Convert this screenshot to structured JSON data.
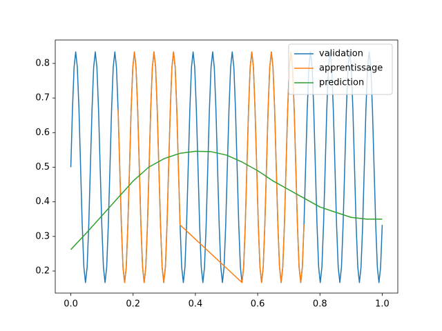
{
  "chart_data": {
    "type": "line",
    "xlim": [
      -0.05,
      1.05
    ],
    "xticks": [
      {
        "value": 0,
        "label": "0.0"
      },
      {
        "value": 0.2,
        "label": "0.2"
      },
      {
        "value": 0.4,
        "label": "0.4"
      },
      {
        "value": 0.6,
        "label": "0.6"
      },
      {
        "value": 0.8,
        "label": "0.8"
      },
      {
        "value": 1,
        "label": "1.0"
      }
    ],
    "ylim": [
      0.1363,
      0.8677
    ],
    "yticks": [
      {
        "value": 0.2,
        "label": "0.2"
      },
      {
        "value": 0.3,
        "label": "0.3"
      },
      {
        "value": 0.4,
        "label": "0.4"
      },
      {
        "value": 0.5,
        "label": "0.5"
      },
      {
        "value": 0.6,
        "label": "0.6"
      },
      {
        "value": 0.7,
        "label": "0.7"
      },
      {
        "value": 0.8,
        "label": "0.8"
      }
    ],
    "grid": false,
    "legend": "upper right",
    "series": [
      {
        "name": "validation",
        "color": "#1f77b4",
        "x": [
          0,
          0.0052,
          0.0105,
          0.0157,
          0.0209,
          0.0262,
          0.0314,
          0.0366,
          0.0419,
          0.0471,
          0.0524,
          0.0576,
          0.0628,
          0.0681,
          0.0733,
          0.0785,
          0.0838,
          0.089,
          0.0942,
          0.0995,
          0.1047,
          0.1099,
          0.1152,
          0.1204,
          0.1257,
          0.1309,
          0.1361,
          0.1414,
          0.1466,
          0.1518,
          0.1571,
          0.1623,
          0.1675,
          0.1728,
          0.178,
          0.1832,
          0.1885,
          0.1937,
          0.199,
          0.2042,
          0.2094,
          0.2147,
          0.2199,
          0.2251,
          0.2304,
          0.2356,
          0.2408,
          0.2461,
          0.2513,
          0.2565,
          0.2618,
          0.267,
          0.2723,
          0.2775,
          0.2827,
          0.288,
          0.2932,
          0.2984,
          0.3037,
          0.3089,
          0.3141,
          0.3194,
          0.3246,
          0.3298,
          0.3351,
          0.3403,
          0.3455,
          0.3508,
          0.356,
          0.3613,
          0.3665,
          0.3717,
          0.377,
          0.3822,
          0.3874,
          0.3927,
          0.3979,
          0.4031,
          0.4084,
          0.4136,
          0.4188,
          0.4241,
          0.4293,
          0.4346,
          0.4398,
          0.445,
          0.4503,
          0.4555,
          0.4607,
          0.466,
          0.4712,
          0.4764,
          0.4817,
          0.4869,
          0.4921,
          0.4974,
          0.5026,
          0.5079,
          0.5131,
          0.5183,
          0.5236,
          0.5288,
          0.534,
          0.5393,
          0.5445,
          0.5497,
          0.555,
          0.5602,
          0.5654,
          0.5707,
          0.5759,
          0.5812,
          0.5864,
          0.5916,
          0.5969,
          0.6021,
          0.6073,
          0.6126,
          0.6178,
          0.623,
          0.6283,
          0.6335,
          0.6387,
          0.644,
          0.6492,
          0.6545,
          0.6597,
          0.6649,
          0.6702,
          0.6754,
          0.6806,
          0.6859,
          0.6911,
          0.6963,
          0.7016,
          0.7068,
          0.712,
          0.7173,
          0.7225,
          0.7277,
          0.733,
          0.7382,
          0.7435,
          0.7487,
          0.7539,
          0.7592,
          0.7644,
          0.7696,
          0.7749,
          0.7801,
          0.7853,
          0.7906,
          0.7958,
          0.801,
          0.8063,
          0.8115,
          0.8168,
          0.822,
          0.8272,
          0.8325,
          0.8377,
          0.8429,
          0.8482,
          0.8534,
          0.8586,
          0.8639,
          0.8691,
          0.8743,
          0.8796,
          0.8848,
          0.8901,
          0.8953,
          0.9005,
          0.9058,
          0.911,
          0.9162,
          0.9215,
          0.9267,
          0.9319,
          0.9372,
          0.9424,
          0.9476,
          0.9529,
          0.9581,
          0.9634,
          0.9686,
          0.9738,
          0.9791,
          0.9843,
          0.9895,
          0.9948,
          1
        ],
        "values": [
          0.5,
          0.6667,
          0.7887,
          0.8333,
          0.7887,
          0.6667,
          0.5,
          0.3333,
          0.2113,
          0.1667,
          0.2113,
          0.3333,
          0.5,
          0.6667,
          0.7887,
          0.8333,
          0.7887,
          0.6667,
          0.5,
          0.3333,
          0.2113,
          0.1667,
          0.2113,
          0.3333,
          0.5,
          0.6667,
          0.7887,
          0.8333,
          0.7887,
          0.6667,
          0.5,
          0.3333,
          0.2113,
          0.1667,
          0.2113,
          0.3333,
          0.5,
          0.6667,
          0.7887,
          0.8333,
          0.7887,
          0.6667,
          0.5,
          0.3333,
          0.2113,
          0.1667,
          0.2113,
          0.3333,
          0.5,
          0.6667,
          0.7887,
          0.8333,
          0.7887,
          0.6667,
          0.5,
          0.3333,
          0.2113,
          0.1667,
          0.2113,
          0.3333,
          0.5,
          0.6667,
          0.7887,
          0.8333,
          0.7887,
          0.6667,
          0.5,
          0.3333,
          0.2113,
          0.1667,
          0.2113,
          0.3333,
          0.5,
          0.6667,
          0.7887,
          0.8333,
          0.7887,
          0.6667,
          0.5,
          0.3333,
          0.2113,
          0.1667,
          0.2113,
          0.3333,
          0.5,
          0.6667,
          0.7887,
          0.8333,
          0.7887,
          0.6667,
          0.5,
          0.3333,
          0.2113,
          0.1667,
          0.2113,
          0.3333,
          0.5,
          0.6667,
          0.7887,
          0.8333,
          0.7887,
          0.6667,
          0.5,
          0.3333,
          0.2113,
          0.1667,
          0.2113,
          0.3333,
          0.5,
          0.6667,
          0.7887,
          0.8333,
          0.7887,
          0.6667,
          0.5,
          0.3333,
          0.2113,
          0.1667,
          0.2113,
          0.3333,
          0.5,
          0.6667,
          0.7887,
          0.8333,
          0.7887,
          0.6667,
          0.5,
          0.3333,
          0.2113,
          0.1667,
          0.2113,
          0.3333,
          0.5,
          0.6667,
          0.7887,
          0.8333,
          0.7887,
          0.6667,
          0.5,
          0.3333,
          0.2113,
          0.1667,
          0.2113,
          0.3333,
          0.5,
          0.6667,
          0.7887,
          0.8333,
          0.7887,
          0.6667,
          0.5,
          0.3333,
          0.2113,
          0.1667,
          0.2113,
          0.3333,
          0.5,
          0.6667,
          0.7887,
          0.8333,
          0.7887,
          0.6667,
          0.5,
          0.3333,
          0.2113,
          0.1667,
          0.2113,
          0.3333,
          0.5,
          0.6667,
          0.7887,
          0.8333,
          0.7887,
          0.6667,
          0.5,
          0.3333,
          0.2113,
          0.1667,
          0.2113,
          0.3333,
          0.5,
          0.6667,
          0.7887,
          0.8333,
          0.7887,
          0.6667,
          0.5,
          0.3333,
          0.2113,
          0.1667,
          0.2113,
          0.3333
        ]
      },
      {
        "name": "apprentissage",
        "color": "#ff7f0e",
        "x": [
          0.1518,
          0.1571,
          0.1623,
          0.1675,
          0.1728,
          0.178,
          0.1832,
          0.1885,
          0.1937,
          0.199,
          0.2042,
          0.2094,
          0.2147,
          0.2199,
          0.2251,
          0.2304,
          0.2356,
          0.2408,
          0.2461,
          0.2513,
          0.2565,
          0.2618,
          0.267,
          0.2723,
          0.2775,
          0.2827,
          0.288,
          0.2932,
          0.2984,
          0.3037,
          0.3089,
          0.3141,
          0.3194,
          0.3246,
          0.3298,
          0.3351,
          0.3403,
          0.3455,
          0.3508,
          0.5497,
          0.555,
          0.5602,
          0.5654,
          0.5707,
          0.5759,
          0.5812,
          0.5864,
          0.5916,
          0.5969,
          0.6021,
          0.6073,
          0.6126,
          0.6178,
          0.623,
          0.6283,
          0.6335,
          0.6387,
          0.644,
          0.6492,
          0.6545,
          0.6597,
          0.6649,
          0.6702,
          0.6754,
          0.6806,
          0.6859,
          0.6911,
          0.6963,
          0.7016,
          0.7068,
          0.712,
          0.7173,
          0.7225,
          0.7277,
          0.733,
          0.7382,
          0.7435,
          0.7487
        ],
        "values": [
          0.6667,
          0.5,
          0.3333,
          0.2113,
          0.1667,
          0.2113,
          0.3333,
          0.5,
          0.6667,
          0.7887,
          0.8333,
          0.7887,
          0.6667,
          0.5,
          0.3333,
          0.2113,
          0.1667,
          0.2113,
          0.3333,
          0.5,
          0.6667,
          0.7887,
          0.8333,
          0.7887,
          0.6667,
          0.5,
          0.3333,
          0.2113,
          0.1667,
          0.2113,
          0.3333,
          0.5,
          0.6667,
          0.7887,
          0.8333,
          0.7887,
          0.6667,
          0.5,
          0.3333,
          0.1667,
          0.2113,
          0.3333,
          0.5,
          0.6667,
          0.7887,
          0.8333,
          0.7887,
          0.6667,
          0.5,
          0.3333,
          0.2113,
          0.1667,
          0.2113,
          0.3333,
          0.5,
          0.6667,
          0.7887,
          0.8333,
          0.7887,
          0.6667,
          0.5,
          0.3333,
          0.2113,
          0.1667,
          0.2113,
          0.3333,
          0.5,
          0.6667,
          0.7887,
          0.8333,
          0.7887,
          0.6667,
          0.5,
          0.3333,
          0.2113,
          0.1667,
          0.2113,
          0.3333
        ]
      },
      {
        "name": "prediction",
        "color": "#2ca02c",
        "x": [
          0,
          0.05,
          0.1,
          0.15,
          0.2,
          0.25,
          0.3,
          0.35,
          0.4,
          0.45,
          0.5,
          0.55,
          0.6,
          0.65,
          0.7,
          0.75,
          0.8,
          0.85,
          0.9,
          0.95,
          1
        ],
        "values": [
          0.262,
          0.31,
          0.36,
          0.41,
          0.46,
          0.5,
          0.525,
          0.54,
          0.546,
          0.545,
          0.535,
          0.515,
          0.49,
          0.46,
          0.435,
          0.41,
          0.385,
          0.37,
          0.355,
          0.35,
          0.35
        ]
      }
    ]
  }
}
